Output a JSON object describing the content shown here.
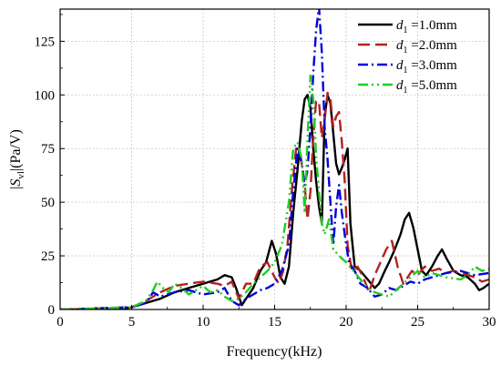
{
  "chart_data": {
    "type": "line",
    "title": "",
    "xlabel": "Frequency(kHz)",
    "ylabel": {
      "prefix": "|",
      "symbol": "S",
      "subscript": "vl",
      "suffix": "|(Pa/V)"
    },
    "xlim": [
      0,
      30
    ],
    "ylim": [
      0,
      140
    ],
    "xticks": [
      0,
      5,
      10,
      15,
      20,
      25,
      30
    ],
    "yticks": [
      0,
      25,
      50,
      75,
      100,
      125
    ],
    "grid": true,
    "legend_position": "top-right",
    "series": [
      {
        "name": "1.0mm",
        "legend_symbol": "d",
        "legend_subscript": "1",
        "legend_suffix": " =1.0mm",
        "color": "#000000",
        "dash": "",
        "x": [
          0,
          4,
          5,
          6,
          7,
          8,
          9,
          10,
          11,
          11.5,
          12,
          12.3,
          12.7,
          13,
          13.5,
          14,
          14.4,
          14.8,
          15.1,
          15.4,
          15.7,
          16,
          16.3,
          16.6,
          16.9,
          17.1,
          17.3,
          17.5,
          17.7,
          17.9,
          18.1,
          18.3,
          18.5,
          18.7,
          18.9,
          19.1,
          19.3,
          19.5,
          19.7,
          19.9,
          20.1,
          20.3,
          20.6,
          21,
          21.5,
          22,
          22.3,
          22.7,
          23,
          23.4,
          23.8,
          24.1,
          24.4,
          24.7,
          25,
          25.3,
          25.6,
          26,
          26.4,
          26.7,
          27,
          27.5,
          28,
          28.5,
          29,
          29.3,
          29.6,
          30
        ],
        "y": [
          0,
          0,
          1,
          3,
          5,
          8,
          10,
          12,
          14,
          16,
          15,
          10,
          2,
          5,
          10,
          18,
          22,
          32,
          26,
          15,
          12,
          20,
          45,
          65,
          88,
          98,
          100,
          94,
          75,
          60,
          48,
          40,
          90,
          100,
          96,
          82,
          68,
          63,
          66,
          70,
          75,
          40,
          20,
          18,
          14,
          10,
          12,
          18,
          22,
          28,
          35,
          42,
          45,
          38,
          28,
          18,
          16,
          20,
          25,
          28,
          24,
          18,
          16,
          15,
          12,
          9,
          10,
          12
        ]
      },
      {
        "name": "2.0mm",
        "legend_symbol": "d",
        "legend_subscript": "1",
        "legend_suffix": " =2.0mm",
        "color": "#b22222",
        "dash": "13,6",
        "x": [
          0,
          5,
          6,
          7,
          8,
          9,
          10,
          11,
          11.5,
          12,
          12.5,
          13,
          13.5,
          14,
          14.5,
          15,
          15.3,
          15.6,
          15.9,
          16.2,
          16.5,
          16.8,
          17.1,
          17.3,
          17.5,
          17.7,
          17.9,
          18.1,
          18.3,
          18.5,
          18.7,
          18.9,
          19.1,
          19.3,
          19.5,
          19.7,
          19.9,
          20.1,
          20.4,
          20.8,
          21.2,
          21.6,
          22,
          22.4,
          22.8,
          23.2,
          23.6,
          24,
          24.3,
          24.6,
          25,
          25.5,
          26,
          26.5,
          27,
          27.5,
          28,
          28.5,
          29,
          29.5,
          30
        ],
        "y": [
          0,
          1,
          4,
          8,
          11,
          12,
          13,
          12,
          11,
          13,
          5,
          12,
          12,
          20,
          22,
          15,
          12,
          18,
          30,
          55,
          75,
          72,
          58,
          42,
          55,
          80,
          97,
          97,
          80,
          88,
          101,
          98,
          85,
          90,
          92,
          78,
          60,
          30,
          18,
          20,
          15,
          8,
          16,
          22,
          28,
          32,
          20,
          12,
          15,
          18,
          16,
          20,
          18,
          19,
          17,
          18,
          17,
          16,
          15,
          13,
          14
        ]
      },
      {
        "name": "3.0mm",
        "legend_symbol": "d",
        "legend_subscript": "1",
        "legend_suffix": " =3.0mm",
        "color": "#0000dd",
        "dash": "11,4,2,4",
        "x": [
          0,
          5,
          6,
          6.5,
          7,
          8,
          9,
          10,
          11,
          11.5,
          12,
          12.5,
          13,
          13.5,
          14,
          14.5,
          15,
          15.5,
          16,
          16.3,
          16.6,
          16.9,
          17.1,
          17.3,
          17.5,
          17.7,
          17.9,
          18.1,
          18.3,
          18.5,
          18.7,
          18.9,
          19.1,
          19.3,
          19.5,
          19.7,
          19.9,
          20.2,
          20.6,
          21,
          21.5,
          22,
          22.5,
          23,
          23.5,
          24,
          24.5,
          25,
          25.5,
          26,
          27,
          28,
          29,
          30
        ],
        "y": [
          0,
          1,
          3,
          8,
          6,
          8,
          9,
          7,
          8,
          10,
          4,
          2,
          5,
          7,
          9,
          10,
          12,
          18,
          30,
          55,
          75,
          68,
          58,
          65,
          85,
          110,
          130,
          141,
          120,
          85,
          70,
          50,
          30,
          48,
          58,
          45,
          35,
          22,
          18,
          12,
          10,
          6,
          7,
          10,
          9,
          11,
          13,
          12,
          14,
          15,
          17,
          18,
          16,
          17
        ]
      },
      {
        "name": "5.0mm",
        "legend_symbol": "d",
        "legend_subscript": "1",
        "legend_suffix": " =5.0mm",
        "color": "#22cc22",
        "dash": "11,4,2,4,2,4",
        "x": [
          0,
          5,
          6,
          6.5,
          6.8,
          7.2,
          7.6,
          8,
          8.5,
          9,
          9.5,
          10,
          10.5,
          11,
          11.5,
          12,
          12.5,
          13,
          13.5,
          14,
          14.5,
          15,
          15.5,
          16,
          16.3,
          16.6,
          16.9,
          17.1,
          17.3,
          17.5,
          17.7,
          17.9,
          18.1,
          18.3,
          18.5,
          18.8,
          19.1,
          19.5,
          20,
          20.5,
          21,
          21.5,
          22,
          22.5,
          23,
          23.5,
          24,
          24.5,
          25,
          25.5,
          26,
          27,
          28,
          28.5,
          29,
          29.5,
          30
        ],
        "y": [
          0,
          1,
          4,
          9,
          13,
          10,
          8,
          12,
          10,
          7,
          9,
          11,
          8,
          9,
          6,
          4,
          5,
          8,
          12,
          15,
          18,
          22,
          30,
          50,
          75,
          78,
          70,
          45,
          80,
          109,
          98,
          72,
          55,
          40,
          35,
          42,
          28,
          25,
          22,
          18,
          14,
          10,
          8,
          7,
          6,
          9,
          12,
          15,
          18,
          15,
          17,
          15,
          14,
          16,
          20,
          18,
          19
        ]
      }
    ]
  }
}
